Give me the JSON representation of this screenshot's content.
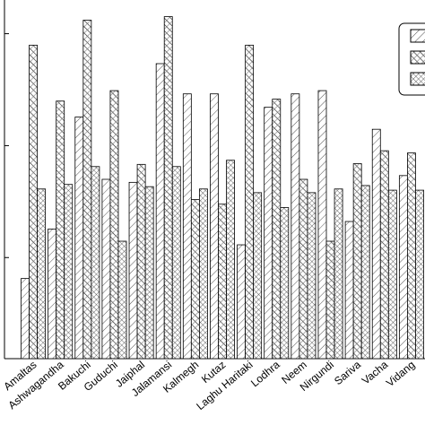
{
  "chart_data": {
    "type": "bar",
    "log_scale": true,
    "categories": [
      "Amaltas",
      "Ashwagandha",
      "Bakuchi",
      "Guduchi",
      "Jaiphal",
      "Jalamansi",
      "Kalmegh",
      "Kutaz",
      "Laghu Haritaki",
      "Lodhra",
      "Neem",
      "Nirgundi",
      "Sariva",
      "Vacha",
      "Vidang"
    ],
    "series": [
      {
        "color": "#000000",
        "values": [
          0.65,
          1.8,
          18,
          5.0,
          4.7,
          54,
          29,
          29,
          1.3,
          22,
          29,
          31,
          2.1,
          14,
          5.4
        ]
      },
      {
        "color": "#000000",
        "values": [
          79,
          25,
          132,
          31,
          6.8,
          142,
          3.3,
          3.0,
          79,
          26,
          5.0,
          1.4,
          6.9,
          9.0,
          8.6
        ]
      },
      {
        "color": "#000000",
        "values": [
          4.1,
          4.5,
          6.5,
          1.4,
          4.3,
          6.5,
          4.1,
          7.4,
          3.8,
          2.8,
          3.8,
          4.1,
          4.4,
          4.0,
          4.0
        ]
      }
    ],
    "ylim": [
      0.125,
      200
    ],
    "yticks": [
      1,
      10,
      100
    ],
    "legend": "top-right"
  }
}
